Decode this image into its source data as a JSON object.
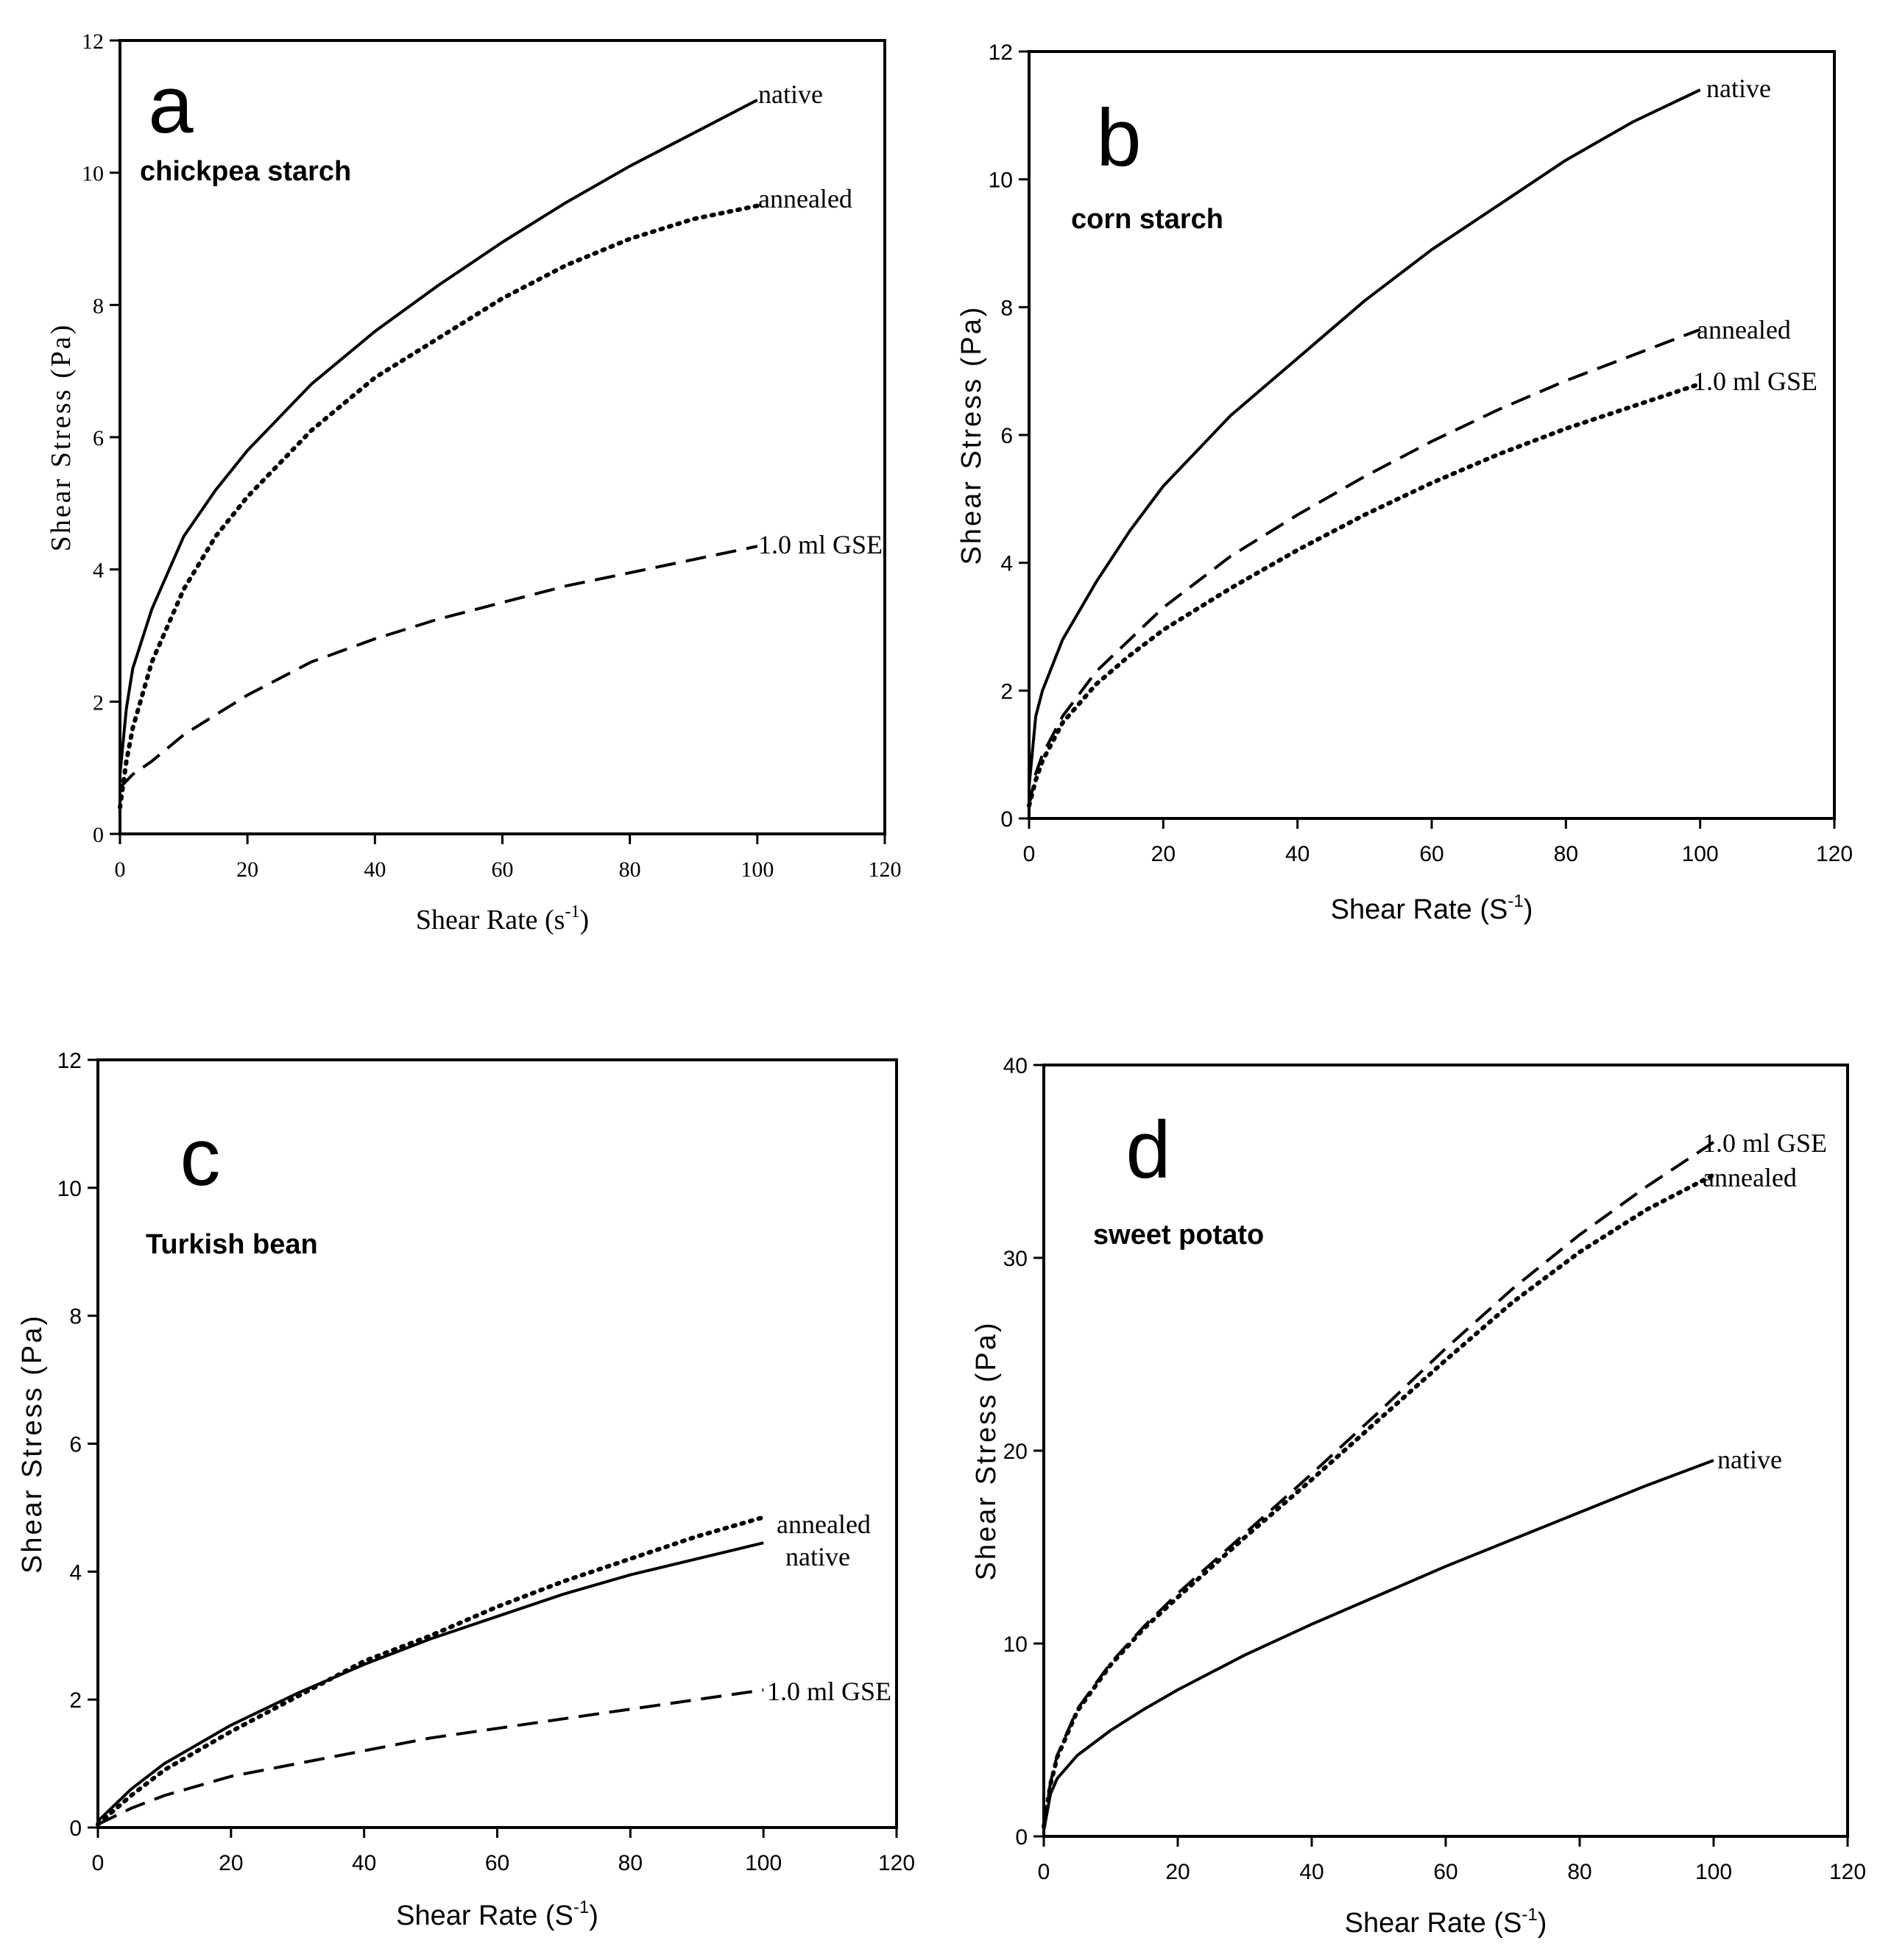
{
  "chart_data": [
    {
      "panel": "a",
      "subtitle": "chickpea starch",
      "type": "line",
      "xlabel": "Shear Rate (s",
      "xlabel_sup": "-1",
      "xlabel_end": ")",
      "ylabel": "Shear Stress (Pa)",
      "xlim": [
        0,
        120
      ],
      "ylim": [
        0,
        12
      ],
      "xticks": [
        0,
        20,
        40,
        60,
        80,
        100,
        120
      ],
      "yticks": [
        0,
        2,
        4,
        6,
        8,
        10,
        12
      ],
      "grid": false,
      "series": [
        {
          "name": "native",
          "style": "solid",
          "x": [
            0,
            1,
            2,
            5,
            10,
            15,
            20,
            30,
            40,
            50,
            60,
            70,
            80,
            90,
            100
          ],
          "y": [
            0.9,
            1.9,
            2.5,
            3.4,
            4.5,
            5.2,
            5.8,
            6.8,
            7.6,
            8.3,
            8.95,
            9.55,
            10.1,
            10.6,
            11.1
          ]
        },
        {
          "name": "annealed",
          "style": "dotted",
          "x": [
            0,
            1,
            2,
            5,
            10,
            15,
            20,
            30,
            40,
            50,
            60,
            70,
            80,
            90,
            100
          ],
          "y": [
            0.4,
            1.1,
            1.6,
            2.6,
            3.7,
            4.5,
            5.1,
            6.1,
            6.9,
            7.5,
            8.1,
            8.6,
            9.0,
            9.3,
            9.5
          ]
        },
        {
          "name": "1.0 ml GSE",
          "style": "dashed",
          "x": [
            0,
            1,
            2,
            5,
            10,
            15,
            20,
            30,
            40,
            50,
            60,
            70,
            80,
            90,
            100
          ],
          "y": [
            0.7,
            0.8,
            0.9,
            1.1,
            1.5,
            1.8,
            2.1,
            2.6,
            2.95,
            3.25,
            3.5,
            3.75,
            3.95,
            4.15,
            4.35
          ]
        }
      ]
    },
    {
      "panel": "b",
      "subtitle": "corn starch",
      "type": "line",
      "xlabel": "Shear Rate (S",
      "xlabel_sup": "-1",
      "xlabel_end": ")",
      "ylabel": "Shear Stress (Pa)",
      "xlim": [
        0,
        120
      ],
      "ylim": [
        0,
        12
      ],
      "xticks": [
        0,
        20,
        40,
        60,
        80,
        100,
        120
      ],
      "yticks": [
        0,
        2,
        4,
        6,
        8,
        10,
        12
      ],
      "grid": false,
      "series": [
        {
          "name": "native",
          "style": "solid",
          "x": [
            0,
            1,
            2,
            5,
            10,
            15,
            20,
            30,
            40,
            50,
            60,
            70,
            80,
            90,
            100
          ],
          "y": [
            0.5,
            1.6,
            2.0,
            2.8,
            3.7,
            4.5,
            5.2,
            6.3,
            7.2,
            8.1,
            8.9,
            9.6,
            10.3,
            10.9,
            11.4
          ]
        },
        {
          "name": "annealed",
          "style": "dashed",
          "x": [
            0,
            1,
            2,
            5,
            10,
            15,
            20,
            30,
            40,
            50,
            60,
            70,
            80,
            90,
            100
          ],
          "y": [
            0.2,
            0.7,
            1.0,
            1.6,
            2.3,
            2.8,
            3.3,
            4.1,
            4.75,
            5.35,
            5.9,
            6.4,
            6.85,
            7.25,
            7.65
          ]
        },
        {
          "name": "1.0 ml GSE",
          "style": "dotted",
          "x": [
            0,
            1,
            2,
            5,
            10,
            15,
            20,
            30,
            40,
            50,
            60,
            70,
            80,
            90,
            100
          ],
          "y": [
            0.2,
            0.6,
            0.9,
            1.5,
            2.1,
            2.55,
            2.95,
            3.6,
            4.2,
            4.75,
            5.25,
            5.7,
            6.1,
            6.45,
            6.8
          ]
        }
      ]
    },
    {
      "panel": "c",
      "subtitle": "Turkish bean",
      "type": "line",
      "xlabel": "Shear Rate (S",
      "xlabel_sup": "-1",
      "xlabel_end": ")",
      "ylabel": "Shear Stress (Pa)",
      "xlim": [
        0,
        120
      ],
      "ylim": [
        0,
        12
      ],
      "xticks": [
        0,
        20,
        40,
        60,
        80,
        100,
        120
      ],
      "yticks": [
        0,
        2,
        4,
        6,
        8,
        10,
        12
      ],
      "grid": false,
      "series": [
        {
          "name": "annealed",
          "style": "dotted",
          "x": [
            0,
            5,
            10,
            20,
            30,
            40,
            50,
            60,
            70,
            80,
            90,
            100
          ],
          "y": [
            0.05,
            0.5,
            0.9,
            1.5,
            2.05,
            2.6,
            3.0,
            3.45,
            3.85,
            4.2,
            4.55,
            4.85
          ]
        },
        {
          "name": "native",
          "style": "solid",
          "x": [
            0,
            5,
            10,
            20,
            30,
            40,
            50,
            60,
            70,
            80,
            90,
            100
          ],
          "y": [
            0.1,
            0.6,
            1.0,
            1.6,
            2.1,
            2.55,
            2.95,
            3.3,
            3.65,
            3.95,
            4.2,
            4.45
          ]
        },
        {
          "name": "1.0 ml GSE",
          "style": "dashed",
          "x": [
            0,
            5,
            10,
            20,
            30,
            40,
            50,
            60,
            70,
            80,
            90,
            100
          ],
          "y": [
            0.05,
            0.3,
            0.5,
            0.8,
            1.0,
            1.2,
            1.4,
            1.55,
            1.7,
            1.85,
            2.0,
            2.15
          ]
        }
      ]
    },
    {
      "panel": "d",
      "subtitle": "sweet potato",
      "type": "line",
      "xlabel": "Shear Rate (S",
      "xlabel_sup": "-1",
      "xlabel_end": ")",
      "ylabel": "Shear Stress (Pa)",
      "xlim": [
        0,
        120
      ],
      "ylim": [
        0,
        40
      ],
      "xticks": [
        0,
        20,
        40,
        60,
        80,
        100,
        120
      ],
      "yticks": [
        0,
        10,
        20,
        30,
        40
      ],
      "grid": false,
      "series": [
        {
          "name": "1.0 ml GSE",
          "style": "dashed",
          "x": [
            0,
            1,
            2,
            5,
            10,
            15,
            20,
            30,
            40,
            50,
            60,
            70,
            80,
            90,
            100
          ],
          "y": [
            0.5,
            2.8,
            4.2,
            6.6,
            9.0,
            10.9,
            12.6,
            15.7,
            18.8,
            22.0,
            25.3,
            28.4,
            31.2,
            33.7,
            36.0
          ]
        },
        {
          "name": "annealed",
          "style": "dotted",
          "x": [
            0,
            1,
            2,
            5,
            10,
            15,
            20,
            30,
            40,
            50,
            60,
            70,
            80,
            90,
            100
          ],
          "y": [
            0.5,
            2.7,
            4.1,
            6.5,
            8.9,
            10.8,
            12.4,
            15.5,
            18.5,
            21.6,
            24.7,
            27.7,
            30.3,
            32.5,
            34.3
          ]
        },
        {
          "name": "native",
          "style": "solid",
          "x": [
            0,
            1,
            2,
            5,
            10,
            15,
            20,
            30,
            40,
            50,
            60,
            70,
            80,
            90,
            100
          ],
          "y": [
            0.3,
            2.2,
            3.0,
            4.2,
            5.5,
            6.6,
            7.6,
            9.4,
            11.0,
            12.5,
            14.0,
            15.4,
            16.8,
            18.2,
            19.5
          ]
        }
      ]
    }
  ]
}
